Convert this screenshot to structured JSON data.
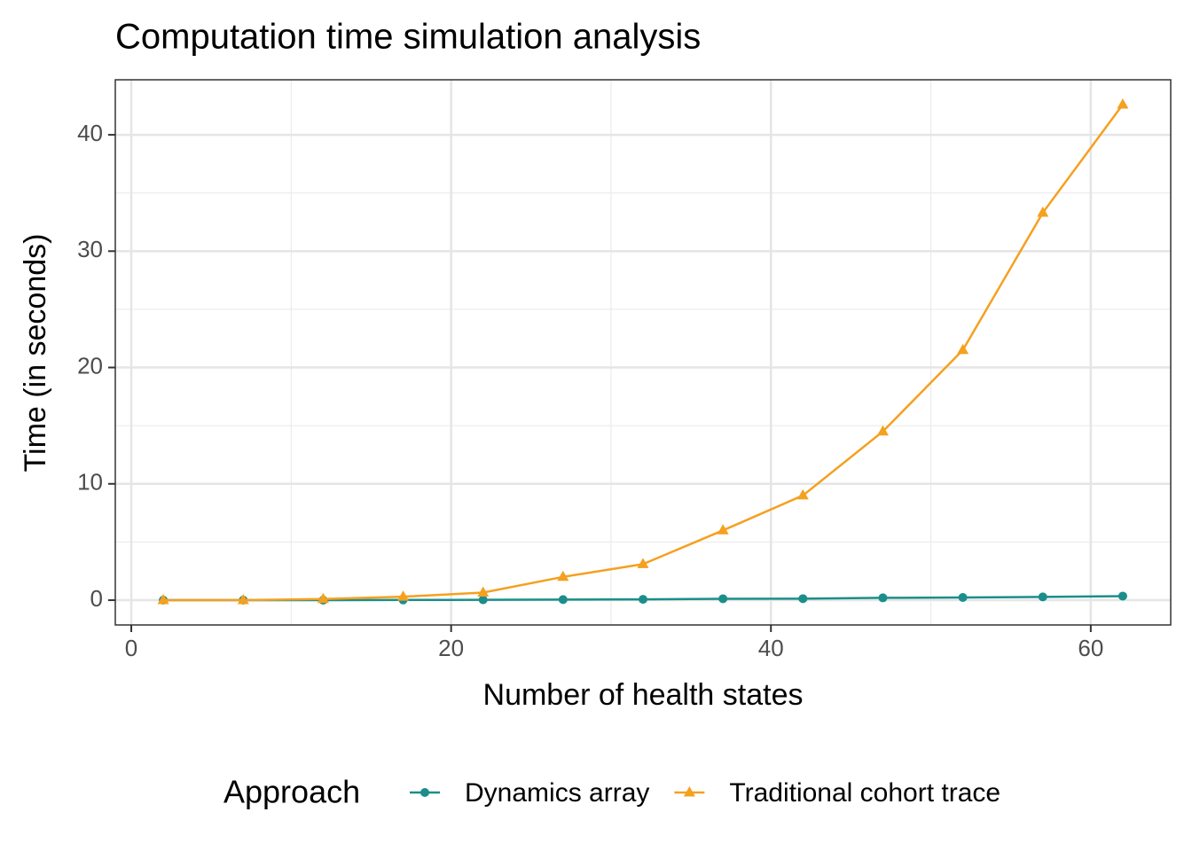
{
  "chart_data": {
    "type": "line",
    "title": "Computation time simulation analysis",
    "x_label": "Number of health states",
    "y_label": "Time (in seconds)",
    "legend_title": "Approach",
    "legend_position": "bottom",
    "x": [
      2,
      7,
      12,
      17,
      22,
      27,
      32,
      37,
      42,
      47,
      52,
      57,
      62
    ],
    "series": [
      {
        "name": "Dynamics array",
        "color": "#1b8e8a",
        "marker": "circle",
        "values": [
          0,
          0,
          0,
          0.02,
          0.03,
          0.05,
          0.07,
          0.12,
          0.13,
          0.2,
          0.23,
          0.28,
          0.35
        ]
      },
      {
        "name": "Traditional cohort trace",
        "color": "#f5a01f",
        "marker": "triangle",
        "values": [
          0,
          0,
          0.1,
          0.3,
          0.65,
          2.0,
          3.1,
          6.0,
          9.0,
          14.5,
          21.5,
          33.3,
          42.6
        ]
      }
    ],
    "xlim": [
      -1,
      65
    ],
    "xticks": [
      0,
      20,
      40,
      60
    ],
    "xminor_ticks": [
      10,
      30,
      50
    ],
    "ylim": [
      -2.13,
      44.73
    ],
    "yticks": [
      0,
      10,
      20,
      30,
      40
    ],
    "yminor_ticks": [
      5,
      15,
      25,
      35
    ],
    "grid": true
  }
}
